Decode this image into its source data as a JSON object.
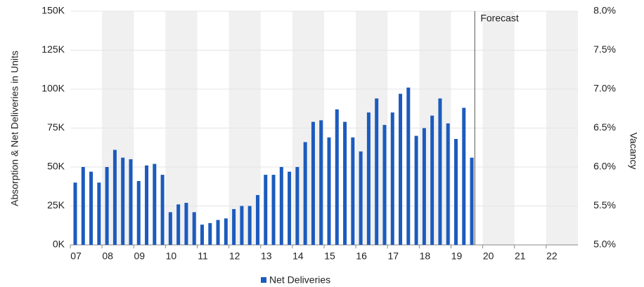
{
  "chart_data": {
    "type": "bar",
    "y_label": "Absorption & Net Deliveries in Units",
    "y2_label": "Vacancy",
    "annotation": {
      "text": "Forecast",
      "x": 2019.75
    },
    "x": [
      2007,
      2007.25,
      2007.5,
      2007.75,
      2008,
      2008.25,
      2008.5,
      2008.75,
      2009,
      2009.25,
      2009.5,
      2009.75,
      2010,
      2010.25,
      2010.5,
      2010.75,
      2011,
      2011.25,
      2011.5,
      2011.75,
      2012,
      2012.25,
      2012.5,
      2012.75,
      2013,
      2013.25,
      2013.5,
      2013.75,
      2014,
      2014.25,
      2014.5,
      2014.75,
      2015,
      2015.25,
      2015.5,
      2015.75,
      2016,
      2016.25,
      2016.5,
      2016.75,
      2017,
      2017.25,
      2017.5,
      2017.75,
      2018,
      2018.25,
      2018.5,
      2018.75,
      2019,
      2019.25,
      2019.5
    ],
    "series": [
      {
        "name": "Net Deliveries",
        "color": "#1c5bbd",
        "values": [
          40000,
          50000,
          47000,
          40000,
          50000,
          61000,
          56000,
          55000,
          41000,
          51000,
          52000,
          45000,
          21000,
          26000,
          27000,
          21000,
          13000,
          14000,
          16000,
          17000,
          23000,
          25000,
          25000,
          32000,
          45000,
          45000,
          50000,
          47000,
          50000,
          66000,
          79000,
          80000,
          69000,
          87000,
          79000,
          69000,
          60000,
          85000,
          94000,
          77000,
          85000,
          97000,
          101000,
          70000,
          75000,
          83000,
          94000,
          78000,
          68000,
          88000,
          56000
        ]
      }
    ],
    "xlim": [
      2007,
      2023
    ],
    "xticks": [
      {
        "value": 2007,
        "label": "07"
      },
      {
        "value": 2008,
        "label": "08"
      },
      {
        "value": 2009,
        "label": "09"
      },
      {
        "value": 2010,
        "label": "10"
      },
      {
        "value": 2011,
        "label": "11"
      },
      {
        "value": 2012,
        "label": "12"
      },
      {
        "value": 2013,
        "label": "13"
      },
      {
        "value": 2014,
        "label": "14"
      },
      {
        "value": 2015,
        "label": "15"
      },
      {
        "value": 2016,
        "label": "16"
      },
      {
        "value": 2017,
        "label": "17"
      },
      {
        "value": 2018,
        "label": "18"
      },
      {
        "value": 2019,
        "label": "19"
      },
      {
        "value": 2020,
        "label": "20"
      },
      {
        "value": 2021,
        "label": "21"
      },
      {
        "value": 2022,
        "label": "22"
      }
    ],
    "ylim": [
      0,
      150000
    ],
    "yticks": [
      {
        "value": 0,
        "label": "0K"
      },
      {
        "value": 25000,
        "label": "25K"
      },
      {
        "value": 50000,
        "label": "50K"
      },
      {
        "value": 75000,
        "label": "75K"
      },
      {
        "value": 100000,
        "label": "100K"
      },
      {
        "value": 125000,
        "label": "125K"
      },
      {
        "value": 150000,
        "label": "150K"
      }
    ],
    "y2lim": [
      5,
      8
    ],
    "y2ticks": [
      {
        "value": 5,
        "label": "5.0%"
      },
      {
        "value": 5.5,
        "label": "5.5%"
      },
      {
        "value": 6,
        "label": "6.0%"
      },
      {
        "value": 6.5,
        "label": "6.5%"
      },
      {
        "value": 7,
        "label": "7.0%"
      },
      {
        "value": 7.5,
        "label": "7.5%"
      },
      {
        "value": 8,
        "label": "8.0%"
      }
    ],
    "grid": true,
    "legend": "bottom"
  }
}
